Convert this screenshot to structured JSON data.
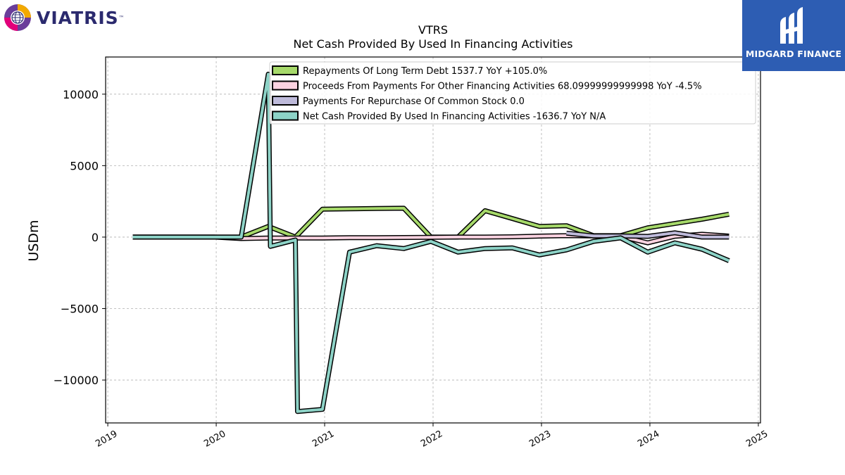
{
  "logos": {
    "left_text": "VIATRIS",
    "left_tm": "™",
    "right_text": "MIDGARD FINANCE"
  },
  "chart_data": {
    "type": "line",
    "title": "VTRS",
    "subtitle": "Net Cash Provided By Used In Financing Activities",
    "ylabel": "USDm",
    "xlabel": "",
    "ylim": [
      -13000,
      12600
    ],
    "xlim": [
      2018.98,
      2025.02
    ],
    "yticks": [
      -10000,
      -5000,
      0,
      5000,
      10000
    ],
    "ytick_labels": [
      "−10000",
      "−5000",
      "0",
      "5000",
      "10000"
    ],
    "xticks": [
      2019,
      2020,
      2021,
      2022,
      2023,
      2024,
      2025
    ],
    "xtick_labels": [
      "2019",
      "2020",
      "2021",
      "2022",
      "2023",
      "2024",
      "2025"
    ],
    "grid": true,
    "legend_position": "top-right",
    "series": [
      {
        "name": "Repayments Of Long Term Debt",
        "legend_label": "Repayments Of Long Term Debt  1537.7 YoY +105.0%",
        "color": "#a6d96a",
        "points": [
          [
            2019.23,
            0
          ],
          [
            2019.48,
            0
          ],
          [
            2019.73,
            0
          ],
          [
            2019.98,
            0
          ],
          [
            2020.23,
            0
          ],
          [
            2020.48,
            750
          ],
          [
            2020.73,
            0
          ],
          [
            2020.98,
            1950
          ],
          [
            2021.23,
            1980
          ],
          [
            2021.48,
            2000
          ],
          [
            2021.73,
            2020
          ],
          [
            2021.98,
            0
          ],
          [
            2022.23,
            0
          ],
          [
            2022.48,
            1850
          ],
          [
            2022.73,
            1300
          ],
          [
            2022.98,
            750
          ],
          [
            2023.23,
            800
          ],
          [
            2023.48,
            100
          ],
          [
            2023.73,
            100
          ],
          [
            2023.98,
            650
          ],
          [
            2024.23,
            950
          ],
          [
            2024.48,
            1250
          ],
          [
            2024.73,
            1600
          ]
        ]
      },
      {
        "name": "Proceeds From Payments For Other Financing Activities",
        "legend_label": "Proceeds From Payments For Other Financing Activities  68.09999999999998 YoY -4.5%",
        "color": "#fbd2e0",
        "points": [
          [
            2019.23,
            0
          ],
          [
            2019.48,
            0
          ],
          [
            2019.73,
            0
          ],
          [
            2019.98,
            0
          ],
          [
            2020.23,
            -100
          ],
          [
            2020.48,
            -60
          ],
          [
            2020.73,
            -60
          ],
          [
            2020.98,
            -60
          ],
          [
            2021.23,
            -40
          ],
          [
            2021.48,
            -40
          ],
          [
            2021.73,
            -30
          ],
          [
            2021.98,
            -20
          ],
          [
            2022.23,
            0
          ],
          [
            2022.48,
            0
          ],
          [
            2022.73,
            20
          ],
          [
            2022.98,
            70
          ],
          [
            2023.23,
            100
          ],
          [
            2023.48,
            80
          ],
          [
            2023.73,
            50
          ],
          [
            2023.98,
            -400
          ],
          [
            2024.23,
            60
          ],
          [
            2024.48,
            200
          ],
          [
            2024.73,
            70
          ]
        ]
      },
      {
        "name": "Payments For Repurchase Of Common Stock",
        "legend_label": "Payments For Repurchase Of Common Stock  0.0",
        "color": "#bebada",
        "points": [
          [
            2023.23,
            280
          ],
          [
            2023.48,
            80
          ],
          [
            2023.73,
            80
          ],
          [
            2023.98,
            50
          ],
          [
            2024.23,
            300
          ],
          [
            2024.48,
            0
          ],
          [
            2024.73,
            0
          ]
        ]
      },
      {
        "name": "Net Cash Provided By Used In Financing Activities",
        "legend_label": "Net Cash Provided By Used In Financing Activities  -1636.7 YoY N/A",
        "color": "#8dd3c7",
        "points": [
          [
            2019.23,
            0
          ],
          [
            2019.48,
            0
          ],
          [
            2019.73,
            0
          ],
          [
            2019.98,
            0
          ],
          [
            2020.23,
            0
          ],
          [
            2020.48,
            11400
          ],
          [
            2020.5,
            -650
          ],
          [
            2020.73,
            -200
          ],
          [
            2020.75,
            -12200
          ],
          [
            2020.98,
            -12050
          ],
          [
            2021.23,
            -1050
          ],
          [
            2021.48,
            -600
          ],
          [
            2021.73,
            -800
          ],
          [
            2021.98,
            -300
          ],
          [
            2022.23,
            -1050
          ],
          [
            2022.48,
            -800
          ],
          [
            2022.73,
            -750
          ],
          [
            2022.98,
            -1250
          ],
          [
            2023.23,
            -900
          ],
          [
            2023.48,
            -300
          ],
          [
            2023.73,
            -50
          ],
          [
            2023.98,
            -1050
          ],
          [
            2024.23,
            -400
          ],
          [
            2024.48,
            -850
          ],
          [
            2024.73,
            -1650
          ]
        ]
      }
    ]
  }
}
